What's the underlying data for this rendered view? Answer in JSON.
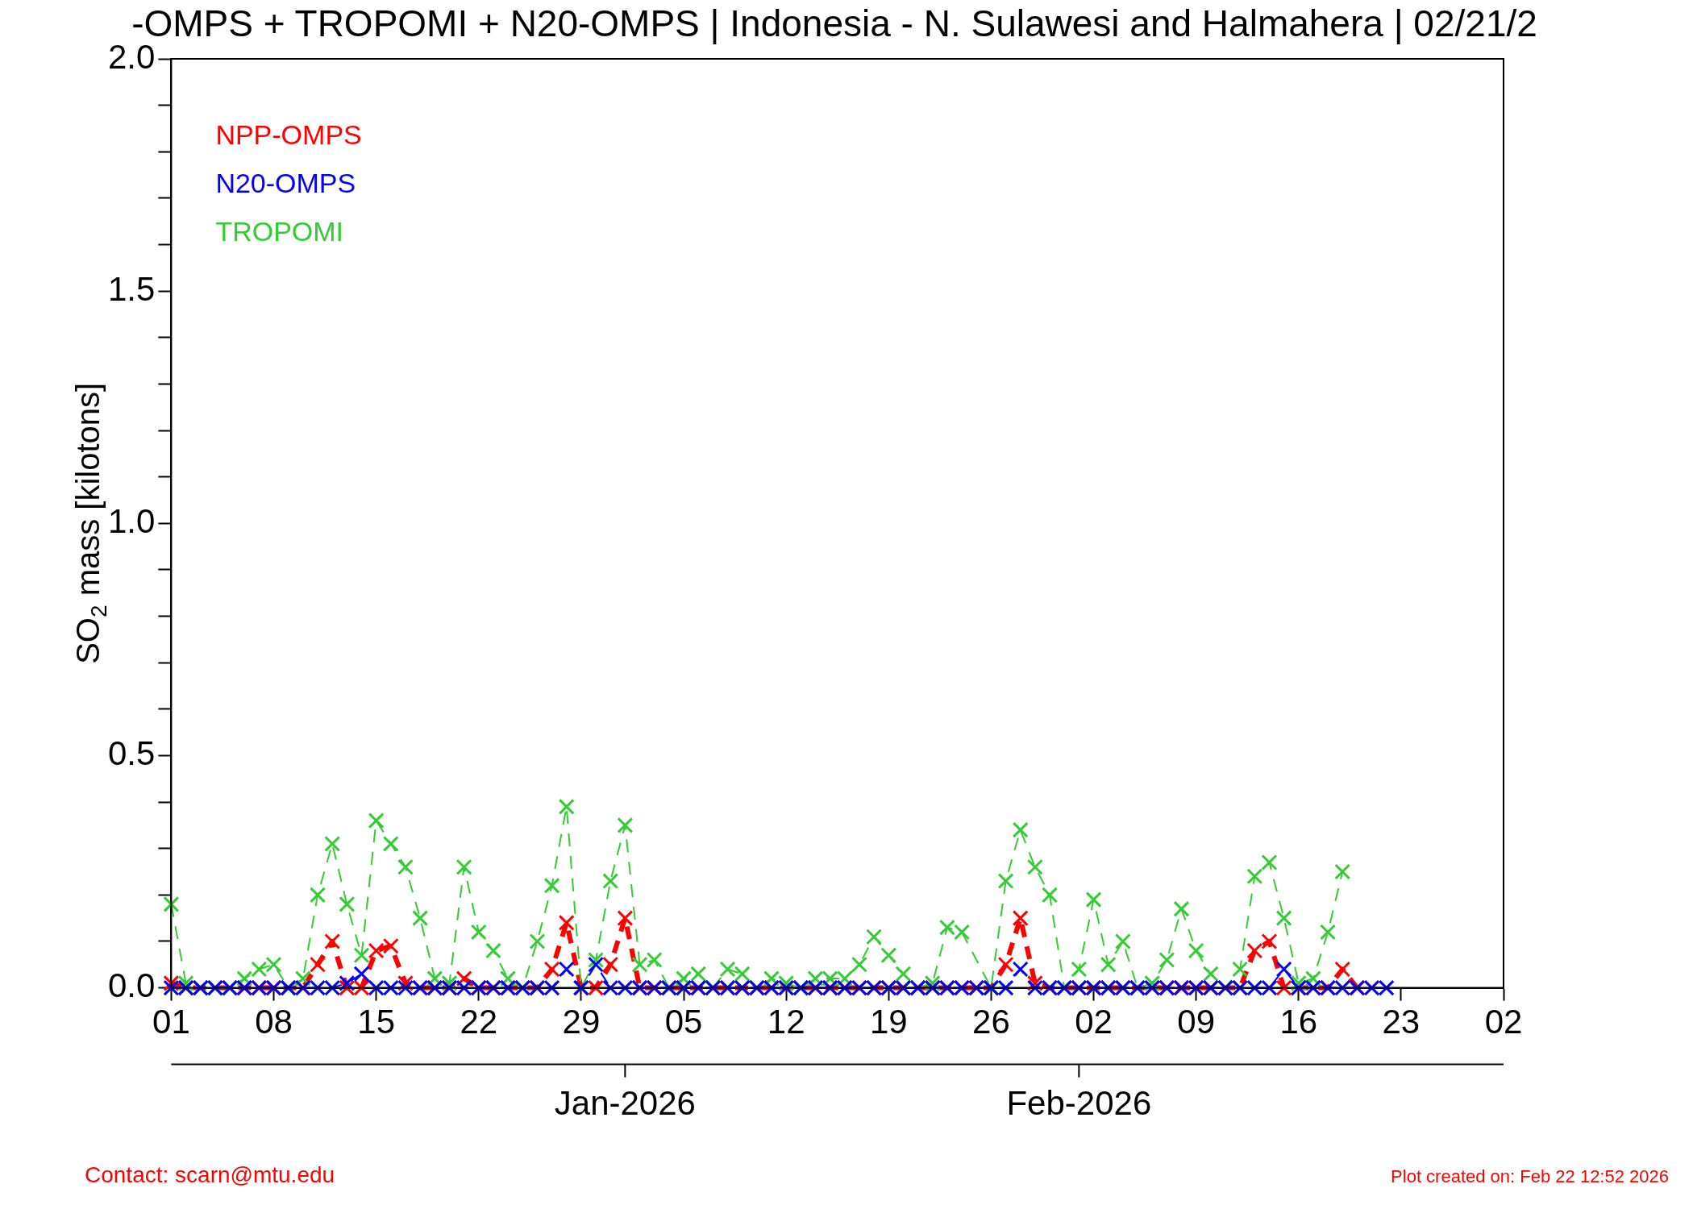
{
  "chart_data": {
    "type": "line",
    "title": "-OMPS + TROPOMI + N20-OMPS | Indonesia - N. Sulawesi and Halmahera | 02/21/2",
    "ylabel": "SO$_{2}$ mass [kilotons]",
    "x": [
      "2025-12-01",
      "2025-12-02",
      "2025-12-03",
      "2025-12-04",
      "2025-12-05",
      "2025-12-06",
      "2025-12-07",
      "2025-12-08",
      "2025-12-09",
      "2025-12-10",
      "2025-12-11",
      "2025-12-12",
      "2025-12-13",
      "2025-12-14",
      "2025-12-15",
      "2025-12-16",
      "2025-12-17",
      "2025-12-18",
      "2025-12-19",
      "2025-12-20",
      "2025-12-21",
      "2025-12-22",
      "2025-12-23",
      "2025-12-24",
      "2025-12-25",
      "2025-12-26",
      "2025-12-27",
      "2025-12-28",
      "2025-12-29",
      "2025-12-30",
      "2025-12-31",
      "2026-01-01",
      "2026-01-02",
      "2026-01-03",
      "2026-01-04",
      "2026-01-05",
      "2026-01-06",
      "2026-01-07",
      "2026-01-08",
      "2026-01-09",
      "2026-01-10",
      "2026-01-11",
      "2026-01-12",
      "2026-01-13",
      "2026-01-14",
      "2026-01-15",
      "2026-01-16",
      "2026-01-17",
      "2026-01-18",
      "2026-01-19",
      "2026-01-20",
      "2026-01-21",
      "2026-01-22",
      "2026-01-23",
      "2026-01-24",
      "2026-01-25",
      "2026-01-26",
      "2026-01-27",
      "2026-01-28",
      "2026-01-29",
      "2026-01-30",
      "2026-01-31",
      "2026-02-01",
      "2026-02-02",
      "2026-02-03",
      "2026-02-04",
      "2026-02-05",
      "2026-02-06",
      "2026-02-07",
      "2026-02-08",
      "2026-02-09",
      "2026-02-10",
      "2026-02-11",
      "2026-02-12",
      "2026-02-13",
      "2026-02-14",
      "2026-02-15",
      "2026-02-16",
      "2026-02-17",
      "2026-02-18",
      "2026-02-19",
      "2026-02-20",
      "2026-02-21",
      "2026-02-22"
    ],
    "series": [
      {
        "name": "NPP-OMPS",
        "color": "#ff0000",
        "values": [
          0.01,
          0,
          0,
          0,
          0,
          0,
          0,
          0,
          0,
          0,
          0.05,
          0.1,
          0,
          0,
          0.08,
          0.09,
          0.01,
          0,
          0,
          0,
          0.02,
          0,
          0,
          0,
          0,
          0,
          0.04,
          0.14,
          0,
          0,
          0.05,
          0.15,
          0,
          0,
          0,
          0,
          0,
          0,
          0,
          0,
          0,
          0,
          0,
          0,
          0,
          0,
          0,
          0,
          0,
          0,
          0,
          0,
          0,
          0,
          0,
          0,
          0,
          0.05,
          0.15,
          0.01,
          0,
          0,
          0,
          0,
          0,
          0,
          0,
          0,
          0,
          0,
          0,
          0,
          0,
          0,
          0.08,
          0.1,
          0,
          0,
          0,
          0,
          0.04,
          0,
          null,
          null
        ]
      },
      {
        "name": "N20-OMPS",
        "color": "#0000ff",
        "values": [
          0,
          0,
          0,
          0,
          0,
          0,
          0,
          0,
          0,
          0,
          0,
          0,
          0.01,
          0.03,
          0,
          0,
          0,
          0,
          0,
          0,
          0,
          0,
          0,
          0,
          0,
          0,
          0,
          0.04,
          0,
          0.05,
          0,
          0,
          0,
          0,
          0,
          0,
          0,
          0,
          0,
          0,
          0,
          0,
          0,
          0,
          0,
          0,
          0,
          0,
          0,
          0,
          0,
          0,
          0,
          0,
          0,
          0,
          0,
          0,
          0.04,
          0,
          0,
          0,
          0,
          0,
          0,
          0,
          0,
          0,
          0,
          0,
          0,
          0,
          0,
          0,
          0,
          0,
          0.04,
          0,
          0,
          0,
          0,
          0,
          0,
          0
        ]
      },
      {
        "name": "TROPOMI",
        "color": "#33cc33",
        "values": [
          0.18,
          0.01,
          0,
          0,
          0,
          0.02,
          0.04,
          0.05,
          0,
          0.02,
          0.2,
          0.31,
          0.18,
          0.07,
          0.36,
          0.31,
          0.26,
          0.15,
          0.02,
          0.01,
          0.26,
          0.12,
          0.08,
          0.02,
          0,
          0.1,
          0.22,
          0.39,
          0,
          0.06,
          0.23,
          0.35,
          0.05,
          0.06,
          0,
          0.02,
          0.03,
          0,
          0.04,
          0.03,
          0,
          0.02,
          0.01,
          0,
          0.02,
          0.02,
          0.02,
          0.05,
          0.11,
          0.07,
          0.03,
          0,
          0.01,
          0.13,
          0.12,
          null,
          0,
          0.23,
          0.34,
          0.26,
          0.2,
          0,
          0.04,
          0.19,
          0.05,
          0.1,
          0,
          0.01,
          0.06,
          0.17,
          0.08,
          0.03,
          0,
          0.04,
          0.24,
          0.27,
          0.15,
          0.01,
          0.02,
          0.12,
          0.25,
          null,
          null,
          null
        ]
      }
    ],
    "xlim": [
      "2025-12-01",
      "2026-03-02"
    ],
    "xticks": [
      {
        "value": "2025-12-01",
        "label": "01"
      },
      {
        "value": "2025-12-08",
        "label": "08"
      },
      {
        "value": "2025-12-15",
        "label": "15"
      },
      {
        "value": "2025-12-22",
        "label": "22"
      },
      {
        "value": "2025-12-29",
        "label": "29"
      },
      {
        "value": "2026-01-05",
        "label": "05"
      },
      {
        "value": "2026-01-12",
        "label": "12"
      },
      {
        "value": "2026-01-19",
        "label": "19"
      },
      {
        "value": "2026-01-26",
        "label": "26"
      },
      {
        "value": "2026-02-02",
        "label": "02"
      },
      {
        "value": "2026-02-09",
        "label": "09"
      },
      {
        "value": "2026-02-16",
        "label": "16"
      },
      {
        "value": "2026-02-23",
        "label": "23"
      },
      {
        "value": "2026-03-02",
        "label": "02"
      }
    ],
    "x2lim": [
      "2025-12-01",
      "2026-03-02"
    ],
    "x2ticks": [
      {
        "value": "2026-01-01",
        "label": "Jan-2026"
      },
      {
        "value": "2026-02-01",
        "label": "Feb-2026"
      }
    ],
    "ylim": [
      0,
      2
    ],
    "yticks": [
      {
        "value": 0,
        "label": "0.0"
      },
      {
        "value": 0.1,
        "label": null
      },
      {
        "value": 0.2,
        "label": null
      },
      {
        "value": 0.3,
        "label": null
      },
      {
        "value": 0.4,
        "label": null
      },
      {
        "value": 0.5,
        "label": "0.5"
      },
      {
        "value": 0.6,
        "label": null
      },
      {
        "value": 0.7,
        "label": null
      },
      {
        "value": 0.8,
        "label": null
      },
      {
        "value": 0.9,
        "label": null
      },
      {
        "value": 1,
        "label": "1.0"
      },
      {
        "value": 1.1,
        "label": null
      },
      {
        "value": 1.2,
        "label": null
      },
      {
        "value": 1.3,
        "label": null
      },
      {
        "value": 1.4,
        "label": null
      },
      {
        "value": 1.5,
        "label": "1.5"
      },
      {
        "value": 1.6,
        "label": null
      },
      {
        "value": 1.7,
        "label": null
      },
      {
        "value": 1.8,
        "label": null
      },
      {
        "value": 1.9,
        "label": null
      },
      {
        "value": 2,
        "label": "2.0"
      }
    ],
    "grid": false,
    "legend": "top left",
    "marker": "cross",
    "line_style": "dashed",
    "annotations": [
      "Contact: scarn@mtu.edu",
      "Plot created on: Feb 22 12:52 2026"
    ]
  }
}
